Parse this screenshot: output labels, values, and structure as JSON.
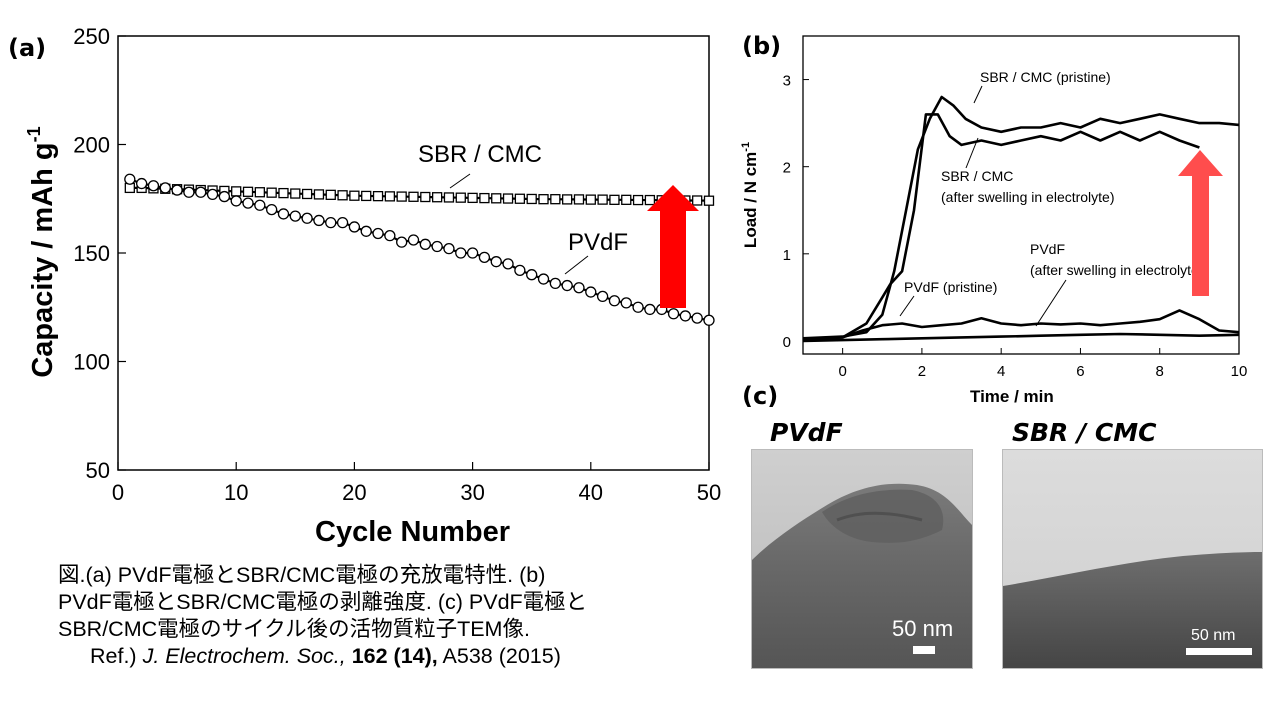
{
  "chart_data": [
    {
      "panel": "(a)",
      "type": "scatter",
      "xlabel": "Cycle Number",
      "ylabel": "Capacity / mAh g-1",
      "xlim": [
        0,
        50
      ],
      "ylim": [
        50,
        250
      ],
      "xticks": [
        0,
        10,
        20,
        30,
        40,
        50
      ],
      "yticks": [
        50,
        100,
        150,
        200,
        250
      ],
      "series": [
        {
          "name": "SBR / CMC",
          "marker": "square",
          "x": [
            1,
            2,
            3,
            4,
            5,
            6,
            7,
            8,
            9,
            10,
            11,
            12,
            13,
            14,
            15,
            16,
            17,
            18,
            19,
            20,
            21,
            22,
            23,
            24,
            25,
            26,
            27,
            28,
            29,
            30,
            31,
            32,
            33,
            34,
            35,
            36,
            37,
            38,
            39,
            40,
            41,
            42,
            43,
            44,
            45,
            46,
            47,
            48,
            49,
            50
          ],
          "y": [
            180,
            180,
            179.8,
            179.6,
            179.4,
            179.2,
            179,
            178.8,
            178.6,
            178.4,
            178.2,
            178,
            177.8,
            177.6,
            177.4,
            177.2,
            177,
            176.8,
            176.6,
            176.4,
            176.3,
            176.2,
            176.1,
            176,
            175.9,
            175.8,
            175.7,
            175.6,
            175.5,
            175.4,
            175.3,
            175.2,
            175.1,
            175,
            174.9,
            174.8,
            174.8,
            174.7,
            174.7,
            174.6,
            174.6,
            174.5,
            174.5,
            174.4,
            174.4,
            174.3,
            174.3,
            174.2,
            174.2,
            174.1
          ]
        },
        {
          "name": "PVdF",
          "marker": "circle",
          "x": [
            1,
            2,
            3,
            4,
            5,
            6,
            7,
            8,
            9,
            10,
            11,
            12,
            13,
            14,
            15,
            16,
            17,
            18,
            19,
            20,
            21,
            22,
            23,
            24,
            25,
            26,
            27,
            28,
            29,
            30,
            31,
            32,
            33,
            34,
            35,
            36,
            37,
            38,
            39,
            40,
            41,
            42,
            43,
            44,
            45,
            46,
            47,
            48,
            49,
            50
          ],
          "y": [
            184,
            182,
            181,
            180,
            179,
            178,
            178,
            177,
            176,
            174,
            173,
            172,
            170,
            168,
            167,
            166,
            165,
            164,
            164,
            162,
            160,
            159,
            158,
            155,
            156,
            154,
            153,
            152,
            150,
            150,
            148,
            146,
            145,
            142,
            140,
            138,
            136,
            135,
            134,
            132,
            130,
            128,
            127,
            125,
            124,
            124,
            122,
            121,
            120,
            119
          ]
        }
      ],
      "annotations": [
        "SBR / CMC",
        "PVdF"
      ],
      "arrow_color": "#ff0000"
    },
    {
      "panel": "(b)",
      "type": "line",
      "xlabel": "Time / min",
      "ylabel": "Load / N cm-1",
      "xlim": [
        -1,
        10
      ],
      "ylim": [
        -0.15,
        3.5
      ],
      "xticks": [
        0,
        2,
        4,
        6,
        8,
        10
      ],
      "yticks": [
        0,
        1,
        2,
        3
      ],
      "series": [
        {
          "name": "SBR / CMC (pristine)",
          "x": [
            -1,
            0,
            0.6,
            1,
            1.3,
            1.6,
            1.9,
            2.2,
            2.5,
            2.8,
            3.1,
            3.5,
            4,
            4.5,
            5,
            5.5,
            6,
            6.5,
            7,
            7.5,
            8,
            8.5,
            9,
            9.5,
            10
          ],
          "y": [
            0.03,
            0.05,
            0.1,
            0.3,
            0.8,
            1.5,
            2.2,
            2.55,
            2.8,
            2.7,
            2.55,
            2.45,
            2.4,
            2.45,
            2.45,
            2.5,
            2.45,
            2.55,
            2.5,
            2.55,
            2.6,
            2.55,
            2.5,
            2.5,
            2.48
          ]
        },
        {
          "name": "SBR / CMC (after swelling in electrolyte)",
          "x": [
            -1,
            0,
            0.6,
            1,
            1.2,
            1.5,
            1.8,
            2.1,
            2.4,
            2.7,
            3,
            3.5,
            4,
            4.5,
            5,
            5.5,
            6,
            6.5,
            7,
            7.5,
            8,
            8.5,
            9
          ],
          "y": [
            0.02,
            0.04,
            0.2,
            0.5,
            0.65,
            0.8,
            1.5,
            2.6,
            2.6,
            2.35,
            2.25,
            2.3,
            2.25,
            2.3,
            2.35,
            2.3,
            2.4,
            2.3,
            2.4,
            2.3,
            2.4,
            2.3,
            2.22
          ]
        },
        {
          "name": "PVdF (pristine)",
          "x": [
            -1,
            0,
            0.5,
            1,
            1.5,
            2,
            2.5,
            3,
            3.5,
            4,
            4.5,
            5,
            5.5,
            6,
            6.5,
            7,
            7.5,
            8,
            8.5,
            9,
            9.5,
            10
          ],
          "y": [
            0.02,
            0.04,
            0.12,
            0.18,
            0.2,
            0.16,
            0.18,
            0.2,
            0.26,
            0.2,
            0.18,
            0.2,
            0.19,
            0.2,
            0.18,
            0.2,
            0.22,
            0.25,
            0.35,
            0.25,
            0.12,
            0.1
          ]
        },
        {
          "name": "PVdF (after swelling in electrolyte)",
          "x": [
            -1,
            0,
            1,
            2,
            3,
            4,
            5,
            6,
            7,
            8,
            9,
            10
          ],
          "y": [
            0.0,
            0.01,
            0.02,
            0.03,
            0.04,
            0.05,
            0.06,
            0.07,
            0.08,
            0.07,
            0.06,
            0.07
          ]
        }
      ],
      "annotations": {
        "sbr_pristine": "SBR / CMC (pristine)",
        "sbr_swell_1": "SBR / CMC",
        "sbr_swell_2": "(after swelling in electrolyte)",
        "pvdf_pristine": "PVdF (pristine)",
        "pvdf_swell_1": "PVdF",
        "pvdf_swell_2": "(after swelling in electrolyte)"
      },
      "arrow_color": "#ff4d4d"
    }
  ],
  "labels": {
    "a": "(a)",
    "b": "(b)",
    "c": "(c)"
  },
  "tem": {
    "left_title": "PVdF",
    "right_title": "SBR / CMC",
    "left_scale": "50 nm",
    "right_scale": "50 nm"
  },
  "caption": {
    "line1": "図.(a)  PVdF電極とSBR/CMC電極の充放電特性.  (b)",
    "line2": "PVdF電極とSBR/CMC電極の剥離強度. (c) PVdF電極と",
    "line3": "SBR/CMC電極のサイクル後の活物質粒子TEM像.",
    "ref_prefix": "Ref.) ",
    "ref_journal": "J. Electrochem. Soc.,",
    "ref_volume": " 162 (14),",
    "ref_page": " A538 (2015)"
  }
}
